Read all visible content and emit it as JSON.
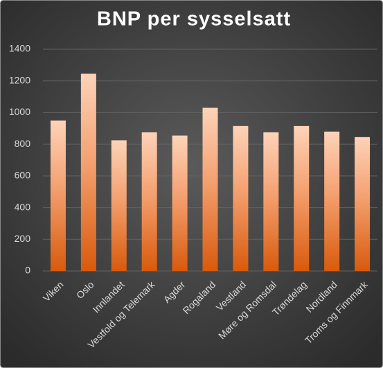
{
  "chart_data": {
    "type": "bar",
    "title": "BNP per sysselsatt",
    "categories": [
      "Viken",
      "Oslo",
      "Innlandet",
      "Vestfold og Telemark",
      "Agder",
      "Rogaland",
      "Vestland",
      "Møre og Romsdal",
      "Trøndelag",
      "Nordland",
      "Troms og Finnmark"
    ],
    "values": [
      950,
      1245,
      825,
      875,
      855,
      1030,
      915,
      875,
      915,
      880,
      845
    ],
    "color": "#f4a070",
    "ylim": [
      0,
      1400
    ],
    "yticks": [
      0,
      200,
      400,
      600,
      800,
      1000,
      1200,
      1400
    ],
    "grid": true
  }
}
